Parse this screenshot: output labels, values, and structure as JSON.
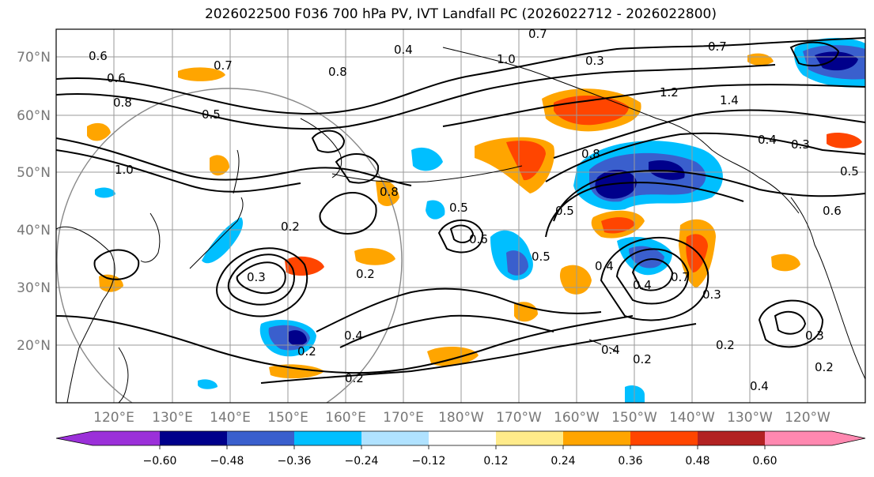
{
  "title": "2026022500 F036 700 hPa PV, IVT Landfall PC (2026022712 - 2026022800)",
  "latitude_labels": [
    "70°N",
    "60°N",
    "50°N",
    "40°N",
    "30°N",
    "20°N"
  ],
  "longitude_labels": [
    "120°E",
    "130°E",
    "140°E",
    "150°E",
    "160°E",
    "170°E",
    "180°W",
    "170°W",
    "160°W",
    "150°W",
    "140°W",
    "130°W",
    "120°W"
  ],
  "colorbar": {
    "colors": [
      "#9b30d9",
      "#00008b",
      "#3a5fcd",
      "#00bfff",
      "#b0e2ff",
      "#ffffff",
      "#ffeb8a",
      "#ffa500",
      "#ff4500",
      "#b22222",
      "#ff88b0"
    ],
    "tick_labels": [
      "−0.60",
      "−0.48",
      "−0.36",
      "−0.24",
      "−0.12",
      "0.12",
      "0.24",
      "0.36",
      "0.48",
      "0.60"
    ]
  },
  "contour_labels": [
    "0.7",
    "0.5",
    "0.4",
    "0.6",
    "0.3",
    "1.0",
    "0.7",
    "0.7",
    "0.6",
    "0.8",
    "1.2",
    "1.4",
    "0.8",
    "0.5",
    "0.4",
    "0.3",
    "0.8",
    "1.0",
    "0.5",
    "0.2",
    "0.3",
    "0.2",
    "0.2",
    "0.4",
    "0.2",
    "0.4",
    "0.2",
    "0.3",
    "0.5",
    "0.6",
    "0.4",
    "0.7",
    "0.4",
    "0.2",
    "0.4",
    "0.5",
    "0.6",
    "0.3",
    "0.2",
    "0.8"
  ],
  "anomaly_colors": {
    "positive_low": "#ffeb8a",
    "positive_mid": "#ffa500",
    "positive_high": "#ff4500",
    "negative_low": "#b0e2ff",
    "negative_mid": "#00bfff",
    "negative_high": "#3a5fcd",
    "negative_max": "#00008b"
  }
}
